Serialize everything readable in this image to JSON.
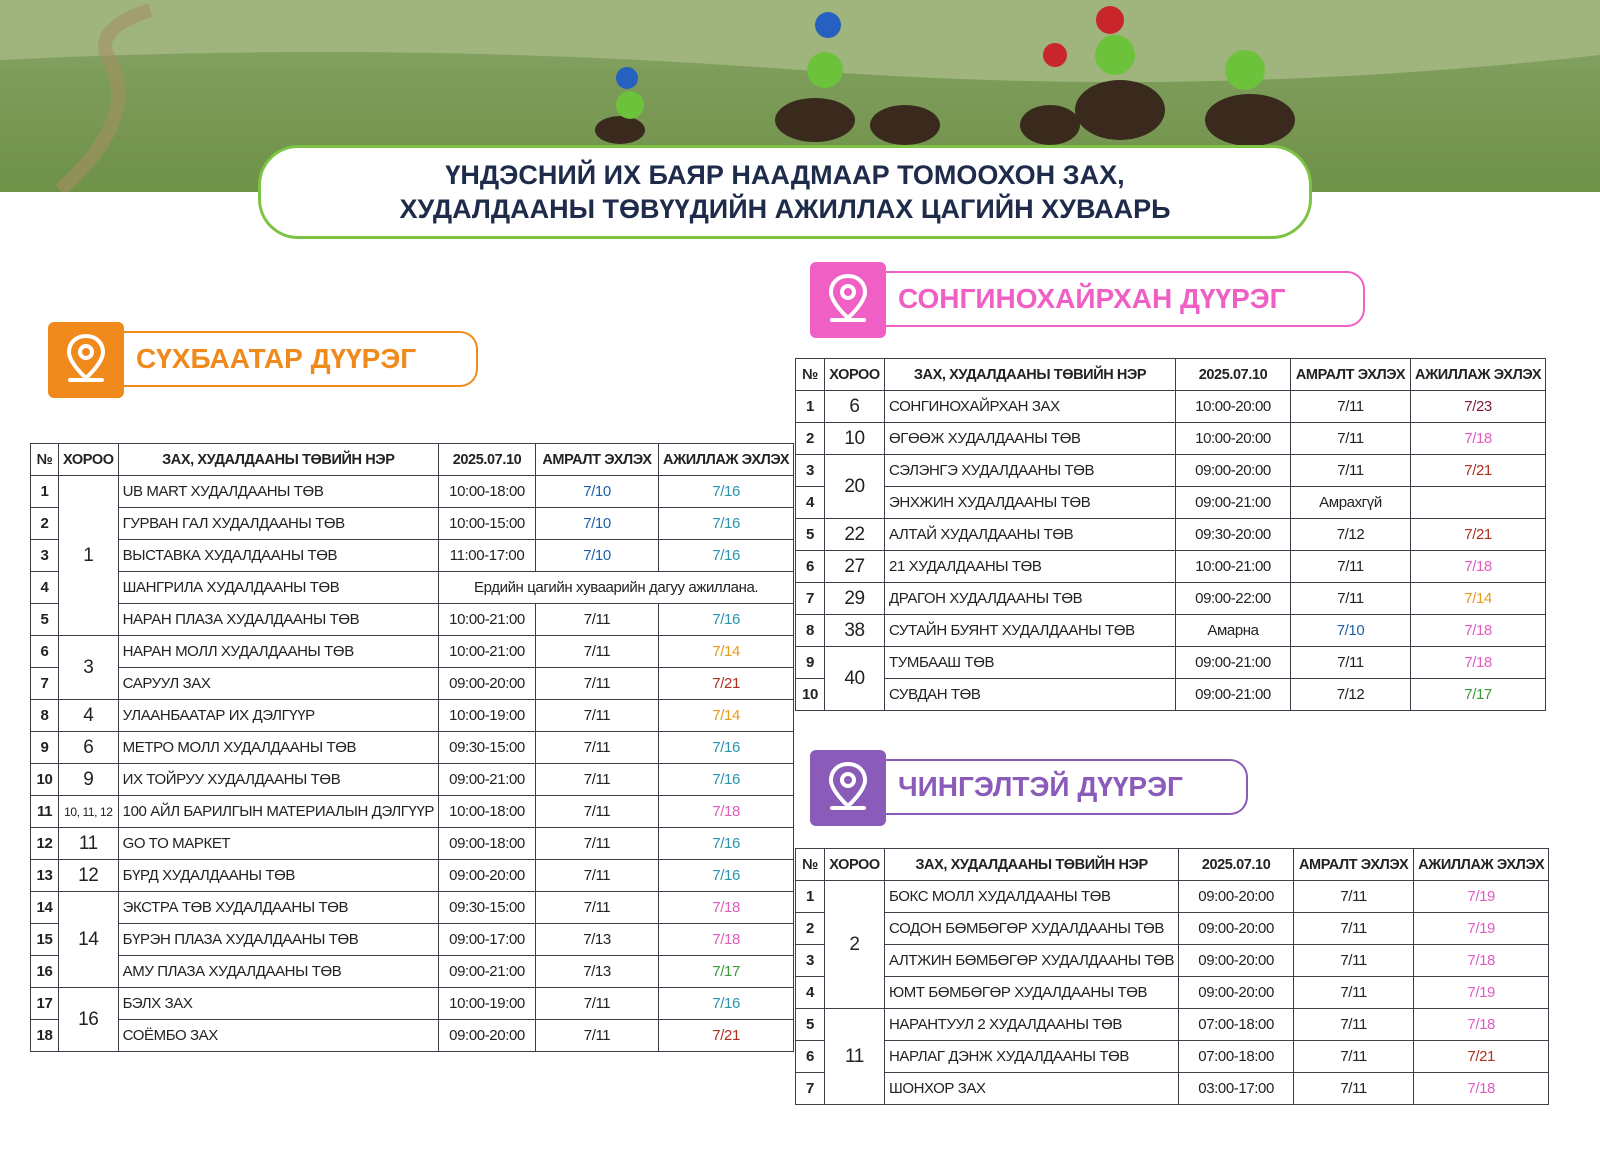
{
  "header": {
    "title_lines": [
      "ҮНДЭСНИЙ ИХ БАЯР НААДМААР ТОМООХОН ЗАХ,",
      "ХУДАЛДААНЫ ТӨВҮҮДИЙН АЖИЛЛАХ ЦАГИЙН ХУВААРЬ"
    ]
  },
  "sections": [
    {
      "title": "СҮХБААТАР ДҮҮРЭГ",
      "color": "#f08a1c",
      "table": {
        "columns": [
          "№",
          "ХОРОО",
          "ЗАХ, ХУДАЛДААНЫ ТӨВИЙН НЭР",
          "2025.07.10",
          "АМРАЛТ ЭХЛЭХ",
          "АЖИЛЛАЖ ЭХЛЭХ"
        ],
        "rows": [
          {
            "no": 1,
            "khoroo": "1",
            "name": "UB MART ХУДАЛДААНЫ ТӨВ",
            "hours": "10:00-18:00",
            "rest": "7/10",
            "rest_color": "#1f5fae",
            "open": "7/16",
            "open_color": "#2a93b5"
          },
          {
            "no": 2,
            "name": "ГУРВАН ГАЛ ХУДАЛДААНЫ ТӨВ",
            "hours": "10:00-15:00",
            "rest": "7/10",
            "rest_color": "#1f5fae",
            "open": "7/16",
            "open_color": "#2a93b5"
          },
          {
            "no": 3,
            "name": "ВЫСТАВКА ХУДАЛДААНЫ ТӨВ",
            "hours": "11:00-17:00",
            "rest": "7/10",
            "rest_color": "#1f5fae",
            "open": "7/16",
            "open_color": "#2a93b5"
          },
          {
            "no": 4,
            "name": "ШАНГРИЛА ХУДАЛДААНЫ ТӨВ",
            "note": "Ердийн цагийн хуваарийн дагуу ажиллана."
          },
          {
            "no": 5,
            "name": "НАРАН ПЛАЗА ХУДАЛДААНЫ ТӨВ",
            "hours": "10:00-21:00",
            "rest": "7/11",
            "open": "7/16",
            "open_color": "#2a93b5"
          },
          {
            "no": 6,
            "khoroo": "3",
            "name": "НАРАН МОЛЛ ХУДАЛДААНЫ ТӨВ",
            "hours": "10:00-21:00",
            "rest": "7/11",
            "open": "7/14",
            "open_color": "#e89a1a"
          },
          {
            "no": 7,
            "name": "САРУУЛ ЗАХ",
            "hours": "09:00-20:00",
            "rest": "7/11",
            "open": "7/21",
            "open_color": "#b0301e"
          },
          {
            "no": 8,
            "khoroo": "4",
            "name": "УЛААНБААТАР ИХ ДЭЛГҮҮР",
            "hours": "10:00-19:00",
            "rest": "7/11",
            "open": "7/14",
            "open_color": "#e89a1a"
          },
          {
            "no": 9,
            "khoroo": "6",
            "name": "МЕТРО МОЛЛ ХУДАЛДААНЫ ТӨВ",
            "hours": "09:30-15:00",
            "rest": "7/11",
            "open": "7/16",
            "open_color": "#2a93b5"
          },
          {
            "no": 10,
            "khoroo": "9",
            "name": "ИХ ТОЙРУУ ХУДАЛДААНЫ ТӨВ",
            "hours": "09:00-21:00",
            "rest": "7/11",
            "open": "7/16",
            "open_color": "#2a93b5"
          },
          {
            "no": 11,
            "khoroo": "10, 11, 12",
            "name": "100 АЙЛ БАРИЛГЫН МАТЕРИАЛЫН ДЭЛГҮҮР",
            "hours": "10:00-18:00",
            "rest": "7/11",
            "open": "7/18",
            "open_color": "#e05cc0"
          },
          {
            "no": 12,
            "khoroo": "11",
            "name": "GO TO МАРКЕТ",
            "hours": "09:00-18:00",
            "rest": "7/11",
            "open": "7/16",
            "open_color": "#2a93b5"
          },
          {
            "no": 13,
            "khoroo": "12",
            "name": "БҮРД ХУДАЛДААНЫ ТӨВ",
            "hours": "09:00-20:00",
            "rest": "7/11",
            "open": "7/16",
            "open_color": "#2a93b5"
          },
          {
            "no": 14,
            "khoroo": "14",
            "name": "ЭКСТРА ТӨВ ХУДАЛДААНЫ ТӨВ",
            "hours": "09:30-15:00",
            "rest": "7/11",
            "open": "7/18",
            "open_color": "#e05cc0"
          },
          {
            "no": 15,
            "name": "БҮРЭН ПЛАЗА ХУДАЛДААНЫ ТӨВ",
            "hours": "09:00-17:00",
            "rest": "7/13",
            "open": "7/18",
            "open_color": "#e05cc0"
          },
          {
            "no": 16,
            "name": "АМУ ПЛАЗА ХУДАЛДААНЫ ТӨВ",
            "hours": "09:00-21:00",
            "rest": "7/13",
            "open": "7/17",
            "open_color": "#3a9a3a"
          },
          {
            "no": 17,
            "khoroo": "16",
            "name": "БЭЛХ ЗАХ",
            "hours": "10:00-19:00",
            "rest": "7/11",
            "open": "7/16",
            "open_color": "#2a93b5"
          },
          {
            "no": 18,
            "name": "СОЁМБО ЗАХ",
            "hours": "09:00-20:00",
            "rest": "7/11",
            "open": "7/21",
            "open_color": "#b0301e"
          }
        ]
      }
    },
    {
      "title": "СОНГИНОХАЙРХАН ДҮҮРЭГ",
      "color": "#ef5fc4",
      "table": {
        "columns": [
          "№",
          "ХОРОО",
          "ЗАХ, ХУДАЛДААНЫ ТӨВИЙН НЭР",
          "2025.07.10",
          "АМРАЛТ ЭХЛЭХ",
          "АЖИЛЛАЖ ЭХЛЭХ"
        ],
        "rows": [
          {
            "no": 1,
            "khoroo": "6",
            "name": "СОНГИНОХАЙРХАН ЗАХ",
            "hours": "10:00-20:00",
            "rest": "7/11",
            "open": "7/23",
            "open_color": "#7a1a3e"
          },
          {
            "no": 2,
            "khoroo": "10",
            "name": "ӨГӨӨЖ ХУДАЛДААНЫ ТӨВ",
            "hours": "10:00-20:00",
            "rest": "7/11",
            "open": "7/18",
            "open_color": "#e05cc0"
          },
          {
            "no": 3,
            "khoroo": "20",
            "name": "СЭЛЭНГЭ ХУДАЛДААНЫ ТӨВ",
            "hours": "09:00-20:00",
            "rest": "7/11",
            "open": "7/21",
            "open_color": "#b0301e"
          },
          {
            "no": 4,
            "name": "ЭНХЖИН ХУДАЛДААНЫ ТӨВ",
            "hours": "09:00-21:00",
            "rest": "Амрахгүй"
          },
          {
            "no": 5,
            "khoroo": "22",
            "name": "АЛТАЙ ХУДАЛДААНЫ ТӨВ",
            "hours": "09:30-20:00",
            "rest": "7/12",
            "open": "7/21",
            "open_color": "#b0301e"
          },
          {
            "no": 6,
            "khoroo": "27",
            "name": "21 ХУДАЛДААНЫ ТӨВ",
            "hours": "10:00-21:00",
            "rest": "7/11",
            "open": "7/18",
            "open_color": "#e05cc0"
          },
          {
            "no": 7,
            "khoroo": "29",
            "name": "ДРАГОН ХУДАЛДААНЫ ТӨВ",
            "hours": "09:00-22:00",
            "rest": "7/11",
            "open": "7/14",
            "open_color": "#e89a1a"
          },
          {
            "no": 8,
            "khoroo": "38",
            "name": "СУТАЙН БУЯНТ ХУДАЛДААНЫ ТӨВ",
            "hours": "Амарна",
            "rest": "7/10",
            "rest_color": "#1f5fae",
            "open": "7/18",
            "open_color": "#e05cc0"
          },
          {
            "no": 9,
            "khoroo": "40",
            "name": "ТУМБААШ ТӨВ",
            "hours": "09:00-21:00",
            "rest": "7/11",
            "open": "7/18",
            "open_color": "#e05cc0"
          },
          {
            "no": 10,
            "name": "СУВДАН ТӨВ",
            "hours": "09:00-21:00",
            "rest": "7/12",
            "open": "7/17",
            "open_color": "#3a9a3a"
          }
        ]
      }
    },
    {
      "title": "ЧИНГЭЛТЭЙ ДҮҮРЭГ",
      "color": "#8a5bb8",
      "table": {
        "columns": [
          "№",
          "ХОРОО",
          "ЗАХ, ХУДАЛДААНЫ ТӨВИЙН НЭР",
          "2025.07.10",
          "АМРАЛТ ЭХЛЭХ",
          "АЖИЛЛАЖ ЭХЛЭХ"
        ],
        "rows": [
          {
            "no": 1,
            "khoroo": "2",
            "name": "БОКС МОЛЛ ХУДАЛДААНЫ ТӨВ",
            "hours": "09:00-20:00",
            "rest": "7/11",
            "open": "7/19",
            "open_color": "#e05cc0"
          },
          {
            "no": 2,
            "name": "СОДОН БӨМБӨГӨР ХУДАЛДААНЫ ТӨВ",
            "hours": "09:00-20:00",
            "rest": "7/11",
            "open": "7/19",
            "open_color": "#e05cc0"
          },
          {
            "no": 3,
            "name": "АЛТЖИН БӨМБӨГӨР ХУДАЛДААНЫ ТӨВ",
            "hours": "09:00-20:00",
            "rest": "7/11",
            "open": "7/18",
            "open_color": "#e05cc0"
          },
          {
            "no": 4,
            "name": "ЮМТ БӨМБӨГӨР ХУДАЛДААНЫ ТӨВ",
            "hours": "09:00-20:00",
            "rest": "7/11",
            "open": "7/19",
            "open_color": "#e05cc0"
          },
          {
            "no": 5,
            "khoroo": "11",
            "name": "НАРАНТУУЛ 2 ХУДАЛДААНЫ ТӨВ",
            "hours": "07:00-18:00",
            "rest": "7/11",
            "open": "7/18",
            "open_color": "#e05cc0"
          },
          {
            "no": 6,
            "name": "НАРЛАГ ДЭНЖ ХУДАЛДААНЫ ТӨВ",
            "hours": "07:00-18:00",
            "rest": "7/11",
            "open": "7/21",
            "open_color": "#b0301e"
          },
          {
            "no": 7,
            "name": "ШОНХОР ЗАХ",
            "hours": "03:00-17:00",
            "rest": "7/11",
            "open": "7/18",
            "open_color": "#e05cc0"
          }
        ]
      }
    }
  ]
}
